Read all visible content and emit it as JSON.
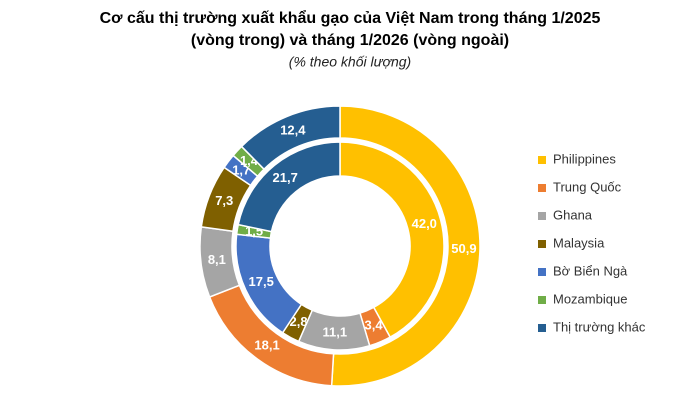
{
  "chart_data": {
    "type": "donut",
    "title": [
      "Cơ cấu thị trường xuất khẩu gạo của Việt Nam trong tháng 1/2025",
      "(vòng trong) và tháng 1/2026 (vòng ngoài)"
    ],
    "subtitle": "(% theo khối lượng)",
    "categories": [
      "Philippines",
      "Trung Quốc",
      "Ghana",
      "Malaysia",
      "Bờ Biển Ngà",
      "Mozambique",
      "Thị trường khác"
    ],
    "colors": [
      "#FFC000",
      "#ED7D31",
      "#A5A5A5",
      "#7F6000",
      "#4472C4",
      "#70AD47",
      "#255E91"
    ],
    "series": [
      {
        "values": [
          42.0,
          3.4,
          11.1,
          2.8,
          17.5,
          1.5,
          21.7
        ],
        "value_labels": [
          "42,0",
          "3,4",
          "11,1",
          "2,8",
          "17,5",
          "1,5",
          "21,7"
        ]
      },
      {
        "values": [
          50.9,
          18.1,
          8.1,
          7.3,
          1.7,
          1.4,
          12.4
        ],
        "value_labels": [
          "50,9",
          "18,1",
          "8,1",
          "7,3",
          "1,7",
          "1,4",
          "12,4"
        ]
      }
    ],
    "legend": "right"
  }
}
